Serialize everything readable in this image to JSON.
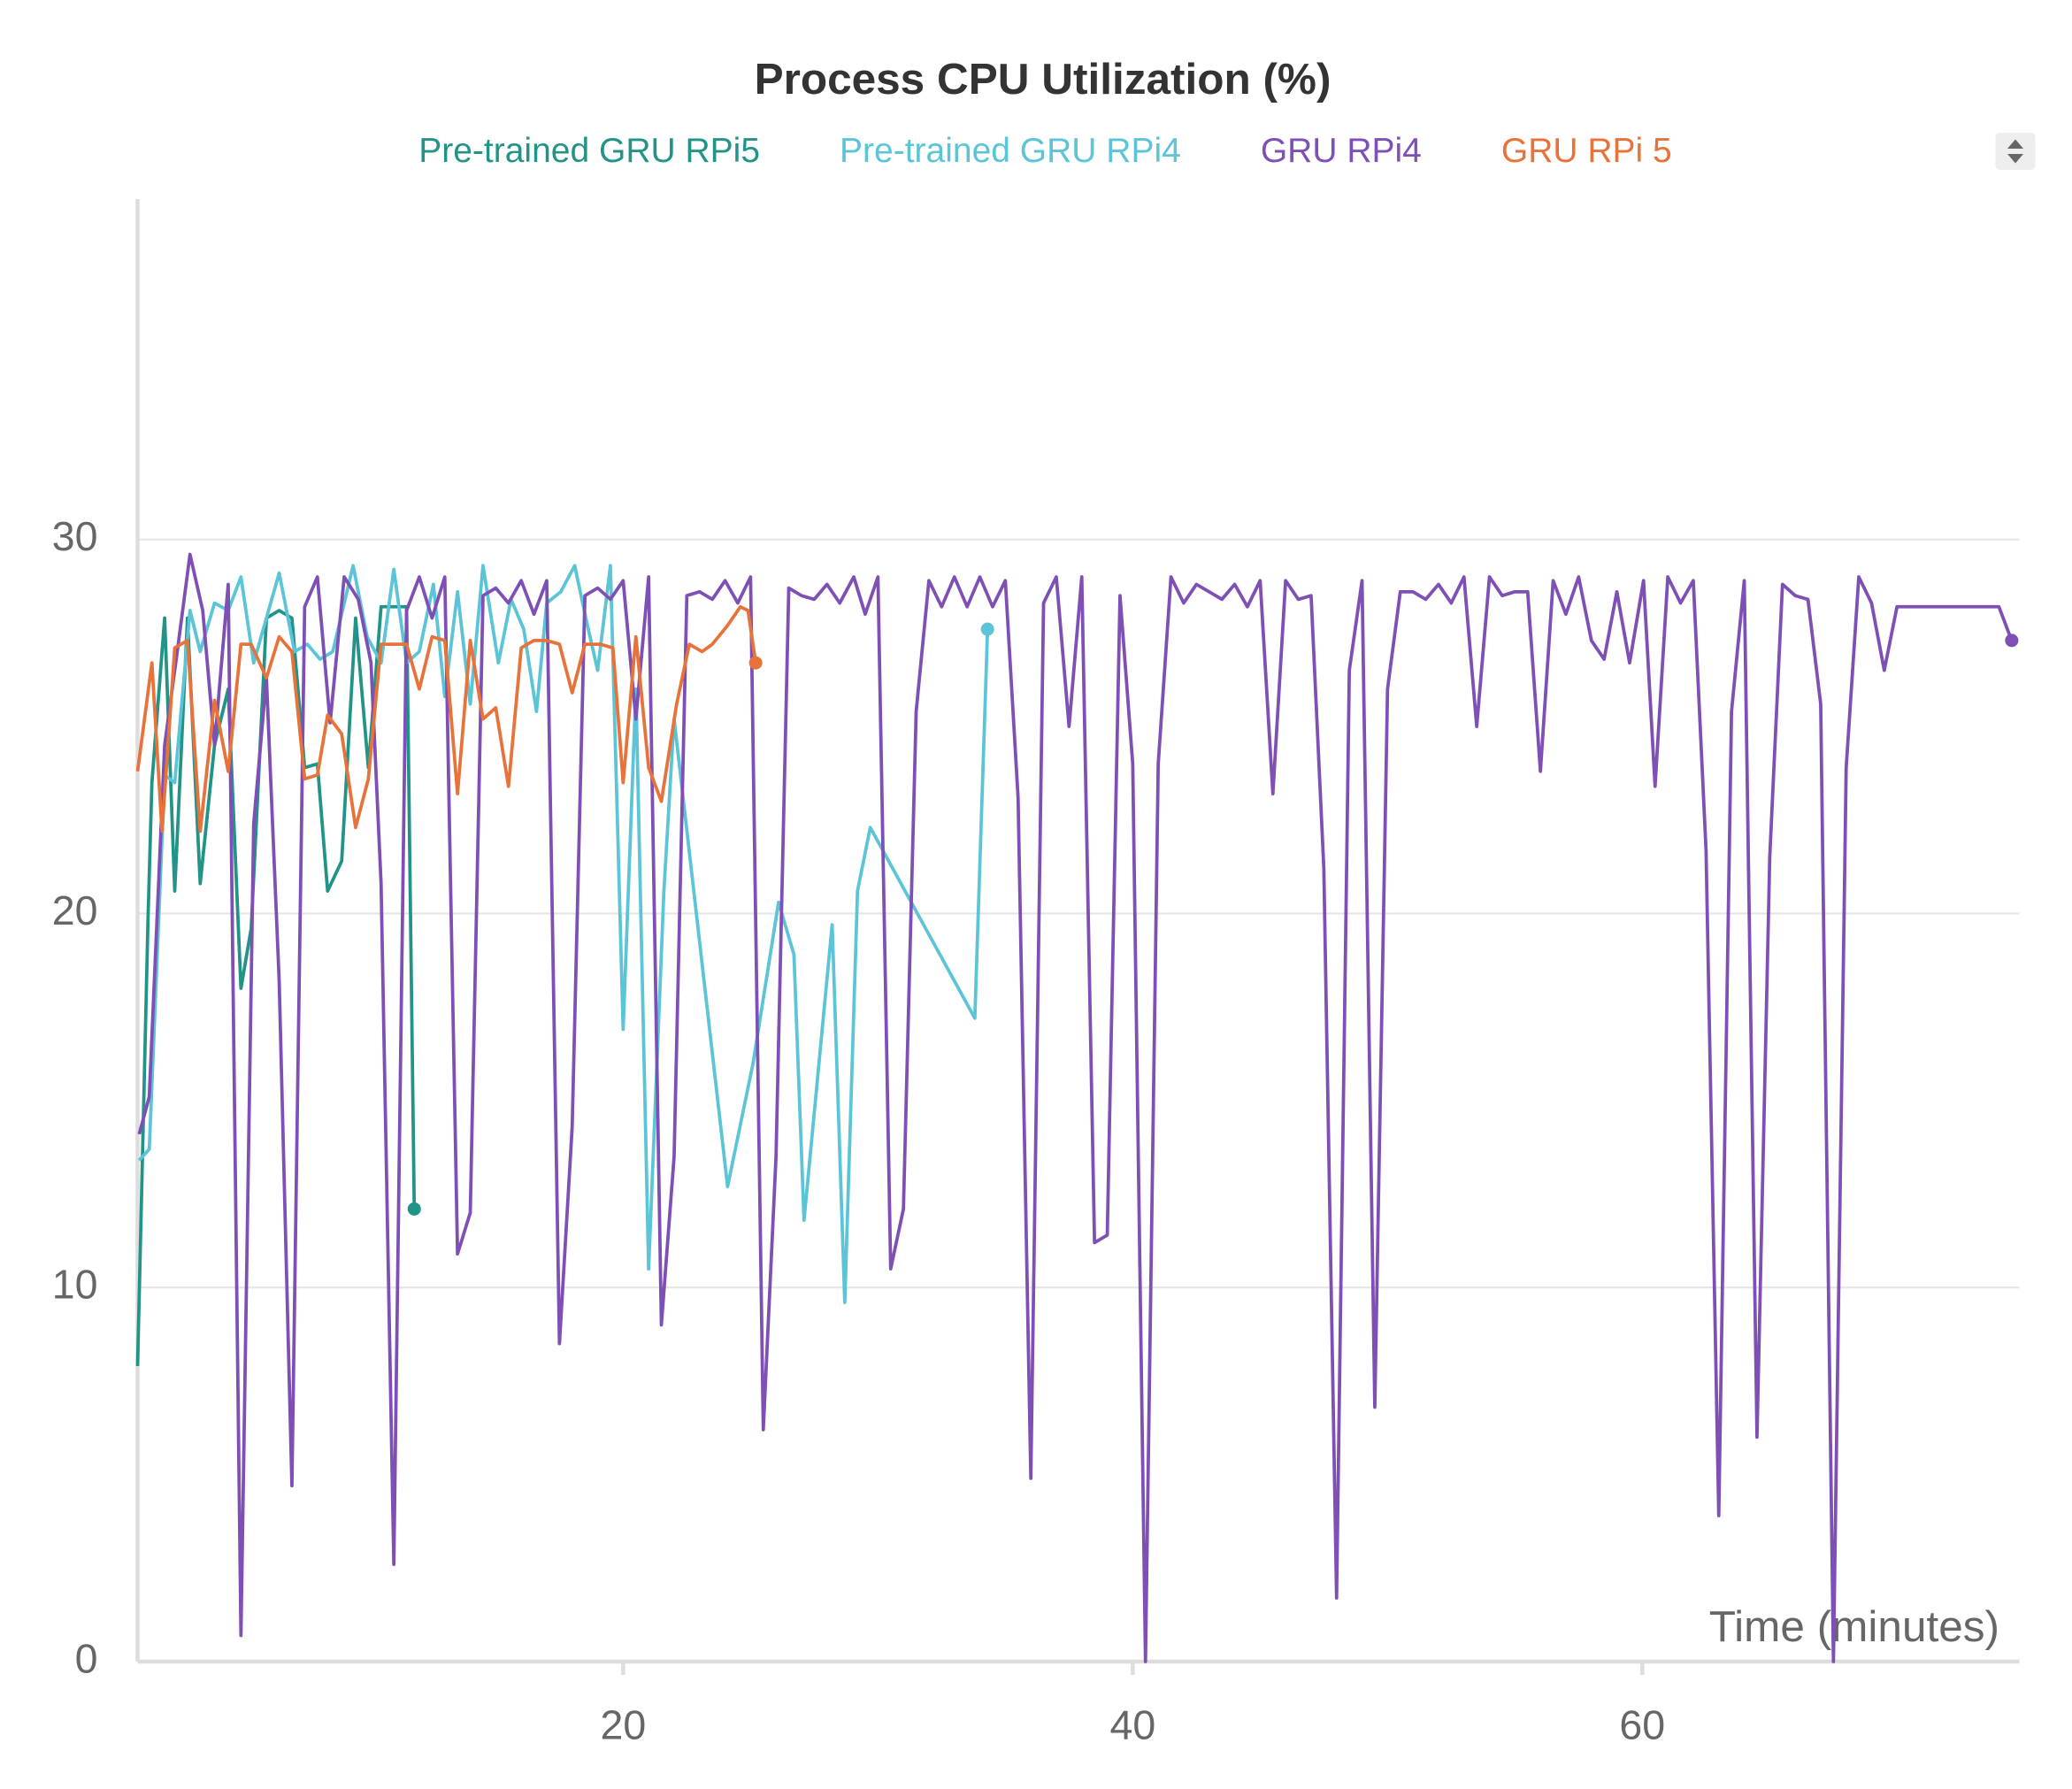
{
  "chart_data": {
    "type": "line",
    "title": "Process CPU Utilization (%)",
    "x_label": "Time (minutes)",
    "xlim": [
      0.94,
      74.8
    ],
    "xticks": [
      20,
      40,
      60
    ],
    "ylim": [
      0,
      39.1
    ],
    "yticks": [
      0,
      10,
      20,
      30
    ],
    "grid": true,
    "series": [
      {
        "name": "Pre-trained GRU RPi5",
        "color": "#229487",
        "x": [
          0.94,
          1.35,
          1.5,
          2.0,
          2.4,
          2.9,
          3.4,
          3.96,
          4.5,
          5.0,
          5.4,
          6.0,
          6.5,
          7.0,
          7.5,
          8.0,
          8.4,
          8.95,
          9.5,
          10.0,
          10.5,
          11.0,
          11.5,
          11.8
        ],
        "values": [
          7.9,
          19.9,
          23.5,
          27.9,
          20.6,
          27.9,
          20.8,
          24.5,
          26.0,
          18.0,
          19.6,
          27.9,
          28.1,
          27.9,
          23.9,
          24.0,
          20.6,
          21.4,
          27.9,
          23.9,
          28.2,
          28.2,
          28.2,
          12.1
        ]
      },
      {
        "name": "Pre-trained GRU RPi4",
        "color": "#5bc4d6",
        "x": [
          1.0,
          1.4,
          2.0,
          2.4,
          3.0,
          3.4,
          3.96,
          4.5,
          5.0,
          5.5,
          6.0,
          6.5,
          7.1,
          7.6,
          8.1,
          8.6,
          9.4,
          9.95,
          10.5,
          11.0,
          11.5,
          12.0,
          12.55,
          13.0,
          13.5,
          14.0,
          14.5,
          15.1,
          15.6,
          16.1,
          16.6,
          17.0,
          17.55,
          18.1,
          18.6,
          19.0,
          19.5,
          20.0,
          20.5,
          21.0,
          21.6,
          22.0,
          24.1,
          25.1,
          26.1,
          26.7,
          27.1,
          28.2,
          28.7,
          29.2,
          29.7,
          33.8,
          34.3
        ],
        "values": [
          13.4,
          13.7,
          23.7,
          23.5,
          28.1,
          27.0,
          28.3,
          28.1,
          29.0,
          26.7,
          27.9,
          29.1,
          27.0,
          27.2,
          26.8,
          27.0,
          29.3,
          27.4,
          26.7,
          29.2,
          26.7,
          27.0,
          28.8,
          25.8,
          28.6,
          25.6,
          29.3,
          26.7,
          28.4,
          27.6,
          25.4,
          28.3,
          28.6,
          29.3,
          27.7,
          26.5,
          29.3,
          16.9,
          26.0,
          10.5,
          20.6,
          25.2,
          12.7,
          16.0,
          20.3,
          18.9,
          11.8,
          19.7,
          9.6,
          20.6,
          22.3,
          17.2,
          27.6
        ]
      },
      {
        "name": "GRU RPi4",
        "color": "#7e4fb5",
        "x": [
          1.0,
          1.4,
          2.0,
          2.5,
          3.0,
          3.5,
          3.96,
          4.5,
          5.0,
          5.5,
          6.0,
          6.5,
          7.0,
          7.5,
          8.0,
          8.5,
          9.05,
          9.6,
          10.1,
          10.5,
          11.0,
          11.5,
          12.0,
          12.5,
          13.0,
          13.5,
          14.0,
          14.5,
          15.0,
          15.5,
          16.0,
          16.5,
          17.0,
          17.5,
          18.0,
          18.5,
          19.0,
          19.5,
          20.0,
          20.5,
          21.0,
          21.5,
          22.0,
          22.5,
          23.0,
          23.5,
          24.0,
          24.5,
          25.0,
          25.5,
          26.0,
          26.5,
          27.0,
          27.5,
          28.0,
          28.5,
          29.05,
          29.5,
          30.0,
          30.5,
          31.0,
          31.5,
          32.0,
          32.5,
          33.0,
          33.5,
          34.0,
          34.5,
          35.0,
          35.5,
          36.0,
          36.5,
          37.0,
          37.5,
          38.0,
          38.5,
          39.0,
          39.5,
          40.0,
          40.5,
          41.0,
          41.5,
          42.0,
          42.5,
          43.0,
          43.5,
          44.0,
          44.5,
          45.0,
          45.5,
          46.0,
          46.5,
          47.0,
          47.5,
          48.0,
          48.5,
          49.0,
          49.5,
          50.0,
          50.5,
          51.0,
          51.5,
          52.0,
          52.5,
          53.0,
          53.5,
          54.0,
          54.5,
          55.0,
          55.5,
          56.0,
          56.5,
          57.0,
          57.5,
          58.0,
          58.5,
          59.0,
          59.5,
          60.05,
          60.5,
          61.0,
          61.5,
          62.0,
          62.5,
          63.0,
          63.5,
          64.0,
          64.5,
          65.0,
          65.5,
          66.0,
          66.5,
          67.0,
          67.5,
          68.0,
          68.5,
          69.0,
          69.5,
          70.0,
          71.0,
          72.0,
          73.0,
          74.0,
          74.5
        ],
        "values": [
          14.1,
          15.1,
          24.5,
          27.0,
          29.6,
          28.1,
          24.5,
          28.8,
          0.7,
          22.4,
          26.3,
          18.2,
          4.7,
          28.2,
          29.0,
          25.1,
          29.0,
          28.4,
          26.7,
          20.8,
          2.6,
          28.1,
          29.0,
          27.9,
          29.0,
          10.9,
          12.0,
          28.5,
          28.7,
          28.3,
          28.9,
          28.0,
          28.9,
          8.5,
          14.3,
          28.5,
          28.7,
          28.4,
          28.9,
          25.2,
          29.0,
          9.0,
          13.5,
          28.5,
          28.6,
          28.4,
          28.9,
          28.3,
          29.0,
          6.2,
          13.5,
          28.7,
          28.5,
          28.4,
          28.8,
          28.3,
          29.0,
          28.0,
          29.0,
          10.5,
          12.1,
          25.4,
          28.9,
          28.2,
          29.0,
          28.2,
          29.0,
          28.2,
          28.9,
          23.1,
          4.9,
          28.3,
          29.0,
          25.0,
          29.0,
          11.2,
          11.4,
          28.5,
          24.0,
          0,
          24.0,
          29.0,
          28.3,
          28.8,
          28.6,
          28.4,
          28.8,
          28.2,
          28.9,
          23.2,
          28.9,
          28.4,
          28.5,
          21.2,
          1.7,
          26.5,
          28.9,
          6.8,
          26.0,
          28.6,
          28.6,
          28.4,
          28.8,
          28.3,
          29.0,
          25.0,
          29.0,
          28.5,
          28.6,
          28.6,
          23.8,
          28.9,
          28.0,
          29.0,
          27.3,
          26.8,
          28.6,
          26.7,
          28.9,
          23.4,
          29.0,
          28.3,
          28.9,
          21.7,
          3.9,
          25.4,
          28.9,
          6.0,
          21.5,
          28.8,
          28.5,
          28.4,
          25.6,
          0,
          23.9,
          29.0,
          28.3,
          26.5,
          28.2,
          28.2,
          28.2,
          28.2,
          28.2,
          27.3
        ]
      },
      {
        "name": "GRU RPi 5",
        "color": "#e8733a",
        "x": [
          0.94,
          1.5,
          1.9,
          2.4,
          2.9,
          3.4,
          3.96,
          4.5,
          5.0,
          5.4,
          6.0,
          6.5,
          7.0,
          7.5,
          8.0,
          8.4,
          8.95,
          9.5,
          10.0,
          10.5,
          11.0,
          11.5,
          12.0,
          12.5,
          13.0,
          13.5,
          14.0,
          14.5,
          15.0,
          15.5,
          16.0,
          16.5,
          17.0,
          17.5,
          18.0,
          18.5,
          19.1,
          19.6,
          20.0,
          20.5,
          21.0,
          21.5,
          22.1,
          22.6,
          23.1,
          23.5,
          24.1,
          24.6,
          24.9,
          25.2
        ],
        "values": [
          23.8,
          26.7,
          22.2,
          27.1,
          27.3,
          22.2,
          25.7,
          23.8,
          27.2,
          27.2,
          26.3,
          27.4,
          27.0,
          23.6,
          23.7,
          25.3,
          24.8,
          22.3,
          23.6,
          27.2,
          27.2,
          27.2,
          26.0,
          27.4,
          27.3,
          23.2,
          27.3,
          25.2,
          25.5,
          23.4,
          27.1,
          27.3,
          27.3,
          27.2,
          25.9,
          27.2,
          27.2,
          27.1,
          23.5,
          27.4,
          23.9,
          23.0,
          25.6,
          27.2,
          27.0,
          27.2,
          27.7,
          28.2,
          28.1,
          26.7
        ]
      }
    ]
  }
}
